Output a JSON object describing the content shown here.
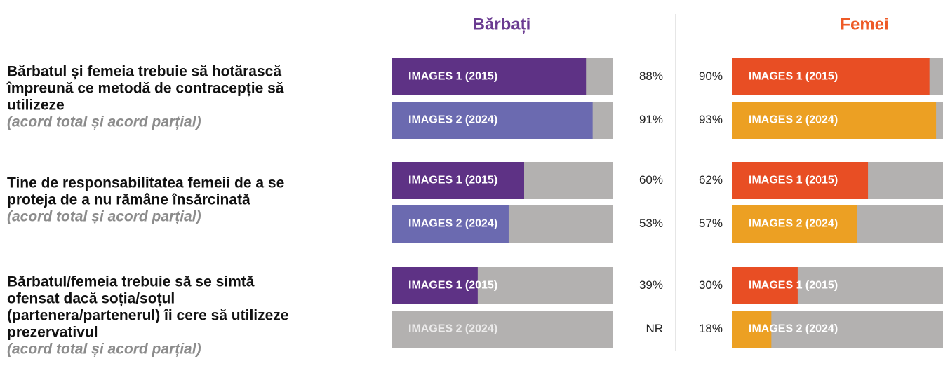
{
  "chart_data": {
    "type": "bar",
    "xlim": [
      0,
      100
    ],
    "track_color": "#b3b1b0",
    "questions": [
      {
        "lines": [
          "Bărbatul și femeia trebuie să hotărască",
          "împreună ce metodă de contracepție să",
          "utilizeze"
        ],
        "note": "(acord total și acord parțial)"
      },
      {
        "lines": [
          "Tine de responsabilitatea femeii de a se",
          "proteja de a nu rămâne însărcinată"
        ],
        "note": "(acord total și acord parțial)"
      },
      {
        "lines": [
          "Bărbatul/femeia trebuie să se simtă",
          "ofensat dacă soția/soțul",
          "(partenera/partenerul) îi cere să utilizeze",
          "prezervativul"
        ],
        "note": "(acord total și acord parțial)"
      }
    ],
    "panels": [
      {
        "title": "Bărbați",
        "color": "#6a3b91",
        "series": [
          {
            "name": "IMAGES 1 (2015)",
            "color": "#5e3285",
            "values": [
              88,
              60,
              39
            ],
            "value_labels": [
              "88%",
              "60%",
              "39%"
            ]
          },
          {
            "name": "IMAGES 2 (2024)",
            "color": "#6b6ab0",
            "values": [
              91,
              53,
              null
            ],
            "value_labels": [
              "91%",
              "53%",
              "NR"
            ]
          }
        ]
      },
      {
        "title": "Femei",
        "color": "#ee5a26",
        "series": [
          {
            "name": "IMAGES 1 (2015)",
            "color": "#e84e24",
            "values": [
              90,
              62,
              30
            ],
            "value_labels": [
              "90%",
              "62%",
              "30%"
            ]
          },
          {
            "name": "IMAGES 2 (2024)",
            "color": "#eca023",
            "values": [
              93,
              57,
              18
            ],
            "value_labels": [
              "93%",
              "57%",
              "18%"
            ]
          }
        ]
      }
    ]
  }
}
